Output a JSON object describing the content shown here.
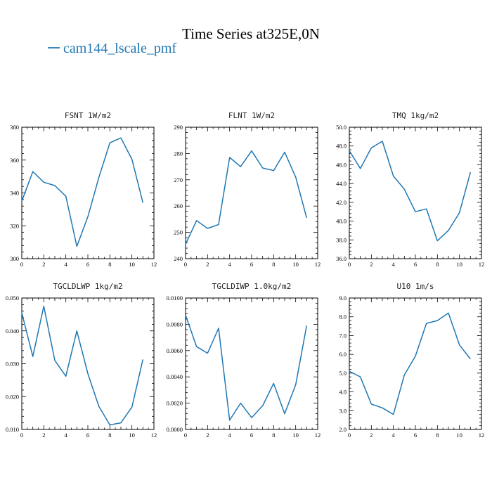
{
  "figure": {
    "title": "Time Series at325E,0N",
    "legend_label": "cam144_lscale_pmf",
    "series_color": "#1f77b4"
  },
  "chart_data": [
    {
      "type": "line",
      "title": "FSNT   1W/m2",
      "x": [
        0,
        1,
        2,
        3,
        4,
        5,
        6,
        7,
        8,
        9,
        10,
        11
      ],
      "series": [
        {
          "name": "cam144_lscale_pmf",
          "values": [
            335,
            353,
            346.5,
            344.5,
            338,
            307.5,
            325.5,
            349.5,
            370.5,
            373.5,
            360.5,
            334
          ]
        }
      ],
      "xlim": [
        0,
        12
      ],
      "ylim": [
        300,
        380
      ],
      "xticks": [
        0,
        2,
        4,
        6,
        8,
        10,
        12
      ],
      "yticks": [
        300,
        320,
        340,
        360,
        380
      ],
      "ytick_labels": [
        "300",
        "320",
        "340",
        "360",
        "380"
      ]
    },
    {
      "type": "line",
      "title": "FLNT   1W/m2",
      "x": [
        0,
        1,
        2,
        3,
        4,
        5,
        6,
        7,
        8,
        9,
        10,
        11
      ],
      "series": [
        {
          "name": "cam144_lscale_pmf",
          "values": [
            245.5,
            254.5,
            251.5,
            253,
            278.5,
            275,
            281,
            274.5,
            273.5,
            280.5,
            271,
            255.5
          ]
        }
      ],
      "xlim": [
        0,
        12
      ],
      "ylim": [
        240,
        290
      ],
      "xticks": [
        0,
        2,
        4,
        6,
        8,
        10,
        12
      ],
      "yticks": [
        240,
        250,
        260,
        270,
        280,
        290
      ],
      "ytick_labels": [
        "240",
        "250",
        "260",
        "270",
        "280",
        "290"
      ]
    },
    {
      "type": "line",
      "title": "TMQ   1kg/m2",
      "x": [
        0,
        1,
        2,
        3,
        4,
        5,
        6,
        7,
        8,
        9,
        10,
        11
      ],
      "series": [
        {
          "name": "cam144_lscale_pmf",
          "values": [
            47.5,
            45.6,
            47.8,
            48.5,
            44.8,
            43.4,
            41.0,
            41.3,
            37.9,
            39.0,
            40.9,
            45.2
          ]
        }
      ],
      "xlim": [
        0,
        12
      ],
      "ylim": [
        36,
        50
      ],
      "xticks": [
        0,
        2,
        4,
        6,
        8,
        10,
        12
      ],
      "yticks": [
        36,
        38,
        40,
        42,
        44,
        46,
        48,
        50
      ],
      "ytick_labels": [
        "36.0",
        "38.0",
        "40.0",
        "42.0",
        "44.0",
        "46.0",
        "48.0",
        "50.0"
      ]
    },
    {
      "type": "line",
      "title": "TGCLDLWP   1kg/m2",
      "x": [
        0,
        1,
        2,
        3,
        4,
        5,
        6,
        7,
        8,
        9,
        10,
        11
      ],
      "series": [
        {
          "name": "cam144_lscale_pmf",
          "values": [
            0.0455,
            0.0322,
            0.0475,
            0.031,
            0.0262,
            0.04,
            0.027,
            0.017,
            0.0114,
            0.012,
            0.0168,
            0.0313
          ]
        }
      ],
      "xlim": [
        0,
        12
      ],
      "ylim": [
        0.01,
        0.05
      ],
      "xticks": [
        0,
        2,
        4,
        6,
        8,
        10,
        12
      ],
      "yticks": [
        0.01,
        0.02,
        0.03,
        0.04,
        0.05
      ],
      "ytick_labels": [
        "0.010",
        "0.020",
        "0.030",
        "0.040",
        "0.050"
      ]
    },
    {
      "type": "line",
      "title": "TGCLDIWP   1.0kg/m2",
      "x": [
        0,
        1,
        2,
        3,
        4,
        5,
        6,
        7,
        8,
        9,
        10,
        11
      ],
      "series": [
        {
          "name": "cam144_lscale_pmf",
          "values": [
            0.0087,
            0.0063,
            0.0058,
            0.0077,
            0.0007,
            0.002,
            0.0009,
            0.0018,
            0.0035,
            0.0012,
            0.0034,
            0.0079
          ]
        }
      ],
      "xlim": [
        0,
        12
      ],
      "ylim": [
        0,
        0.01
      ],
      "xticks": [
        0,
        2,
        4,
        6,
        8,
        10,
        12
      ],
      "yticks": [
        0,
        0.002,
        0.004,
        0.006,
        0.008,
        0.01
      ],
      "ytick_labels": [
        "0.0000",
        "0.0020",
        "0.0040",
        "0.0060",
        "0.0080",
        "0.0100"
      ]
    },
    {
      "type": "line",
      "title": "U10   1m/s",
      "x": [
        0,
        1,
        2,
        3,
        4,
        5,
        6,
        7,
        8,
        9,
        10,
        11
      ],
      "series": [
        {
          "name": "cam144_lscale_pmf",
          "values": [
            5.1,
            4.8,
            3.35,
            3.15,
            2.8,
            4.9,
            5.9,
            7.65,
            7.8,
            8.2,
            6.5,
            5.75
          ]
        }
      ],
      "xlim": [
        0,
        12
      ],
      "ylim": [
        2,
        9
      ],
      "xticks": [
        0,
        2,
        4,
        6,
        8,
        10,
        12
      ],
      "yticks": [
        2,
        3,
        4,
        5,
        6,
        7,
        8,
        9
      ],
      "ytick_labels": [
        "2.0",
        "3.0",
        "4.0",
        "5.0",
        "6.0",
        "7.0",
        "8.0",
        "9.0"
      ]
    }
  ]
}
